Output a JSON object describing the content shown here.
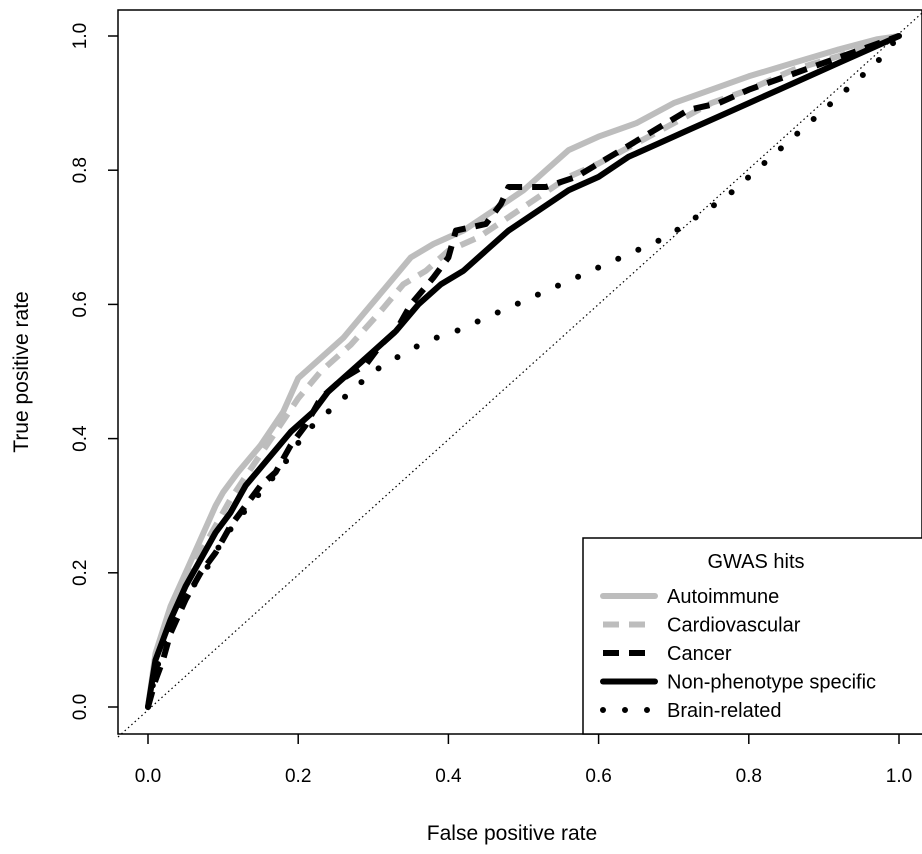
{
  "chart_data": {
    "type": "line",
    "title": "",
    "xlabel": "False positive rate",
    "ylabel": "True positive rate",
    "xlim": [
      -0.04,
      1.03
    ],
    "ylim": [
      -0.04,
      1.04
    ],
    "x_ticks": [
      "0.0",
      "0.2",
      "0.4",
      "0.6",
      "0.8",
      "1.0"
    ],
    "y_ticks": [
      "0.0",
      "0.2",
      "0.4",
      "0.6",
      "0.8",
      "1.0"
    ],
    "grid": false,
    "legend": {
      "title": "GWAS hits",
      "placement": "bottom-right"
    },
    "reference_line": {
      "style": "dotted",
      "color": "#000000",
      "from": [
        0,
        0
      ],
      "to": [
        1,
        1
      ]
    },
    "series": [
      {
        "name": "Autoimmune",
        "color": "#bdbdbd",
        "style": "solid",
        "points": [
          [
            0,
            0
          ],
          [
            0.01,
            0.08
          ],
          [
            0.03,
            0.15
          ],
          [
            0.05,
            0.2
          ],
          [
            0.07,
            0.25
          ],
          [
            0.09,
            0.3
          ],
          [
            0.1,
            0.32
          ],
          [
            0.12,
            0.35
          ],
          [
            0.15,
            0.39
          ],
          [
            0.18,
            0.44
          ],
          [
            0.2,
            0.49
          ],
          [
            0.23,
            0.52
          ],
          [
            0.26,
            0.55
          ],
          [
            0.29,
            0.59
          ],
          [
            0.32,
            0.63
          ],
          [
            0.35,
            0.67
          ],
          [
            0.38,
            0.69
          ],
          [
            0.42,
            0.71
          ],
          [
            0.46,
            0.74
          ],
          [
            0.5,
            0.77
          ],
          [
            0.53,
            0.8
          ],
          [
            0.56,
            0.83
          ],
          [
            0.6,
            0.85
          ],
          [
            0.65,
            0.87
          ],
          [
            0.7,
            0.9
          ],
          [
            0.75,
            0.92
          ],
          [
            0.8,
            0.94
          ],
          [
            0.86,
            0.96
          ],
          [
            0.92,
            0.98
          ],
          [
            0.97,
            0.995
          ],
          [
            1,
            1
          ]
        ]
      },
      {
        "name": "Cardiovascular",
        "color": "#bdbdbd",
        "style": "dashed",
        "points": [
          [
            0,
            0
          ],
          [
            0.01,
            0.07
          ],
          [
            0.03,
            0.13
          ],
          [
            0.05,
            0.18
          ],
          [
            0.07,
            0.23
          ],
          [
            0.09,
            0.27
          ],
          [
            0.11,
            0.31
          ],
          [
            0.14,
            0.36
          ],
          [
            0.17,
            0.41
          ],
          [
            0.2,
            0.46
          ],
          [
            0.23,
            0.5
          ],
          [
            0.27,
            0.54
          ],
          [
            0.31,
            0.59
          ],
          [
            0.34,
            0.63
          ],
          [
            0.37,
            0.65
          ],
          [
            0.4,
            0.68
          ],
          [
            0.44,
            0.7
          ],
          [
            0.48,
            0.73
          ],
          [
            0.52,
            0.76
          ],
          [
            0.56,
            0.79
          ],
          [
            0.6,
            0.81
          ],
          [
            0.65,
            0.84
          ],
          [
            0.7,
            0.87
          ],
          [
            0.75,
            0.9
          ],
          [
            0.8,
            0.92
          ],
          [
            0.86,
            0.95
          ],
          [
            0.92,
            0.97
          ],
          [
            0.97,
            0.99
          ],
          [
            1,
            1
          ]
        ]
      },
      {
        "name": "Cancer",
        "color": "#000000",
        "style": "dashed",
        "points": [
          [
            0,
            0
          ],
          [
            0.01,
            0.04
          ],
          [
            0.02,
            0.07
          ],
          [
            0.03,
            0.11
          ],
          [
            0.05,
            0.16
          ],
          [
            0.07,
            0.2
          ],
          [
            0.09,
            0.23
          ],
          [
            0.11,
            0.27
          ],
          [
            0.13,
            0.3
          ],
          [
            0.15,
            0.33
          ],
          [
            0.17,
            0.35
          ],
          [
            0.19,
            0.39
          ],
          [
            0.21,
            0.42
          ],
          [
            0.23,
            0.46
          ],
          [
            0.26,
            0.49
          ],
          [
            0.29,
            0.51
          ],
          [
            0.31,
            0.54
          ],
          [
            0.33,
            0.56
          ],
          [
            0.35,
            0.6
          ],
          [
            0.38,
            0.64
          ],
          [
            0.4,
            0.67
          ],
          [
            0.41,
            0.71
          ],
          [
            0.45,
            0.72
          ],
          [
            0.47,
            0.75
          ],
          [
            0.48,
            0.775
          ],
          [
            0.53,
            0.775
          ],
          [
            0.57,
            0.79
          ],
          [
            0.6,
            0.81
          ],
          [
            0.63,
            0.83
          ],
          [
            0.66,
            0.85
          ],
          [
            0.69,
            0.87
          ],
          [
            0.72,
            0.89
          ],
          [
            0.76,
            0.9
          ],
          [
            0.8,
            0.92
          ],
          [
            0.85,
            0.94
          ],
          [
            0.9,
            0.96
          ],
          [
            0.95,
            0.98
          ],
          [
            1,
            1
          ]
        ]
      },
      {
        "name": "Non-phenotype specific",
        "color": "#000000",
        "style": "solid",
        "points": [
          [
            0,
            0
          ],
          [
            0.01,
            0.07
          ],
          [
            0.03,
            0.13
          ],
          [
            0.05,
            0.18
          ],
          [
            0.07,
            0.22
          ],
          [
            0.09,
            0.26
          ],
          [
            0.11,
            0.29
          ],
          [
            0.13,
            0.33
          ],
          [
            0.16,
            0.37
          ],
          [
            0.19,
            0.41
          ],
          [
            0.22,
            0.44
          ],
          [
            0.24,
            0.47
          ],
          [
            0.27,
            0.5
          ],
          [
            0.3,
            0.53
          ],
          [
            0.33,
            0.56
          ],
          [
            0.36,
            0.6
          ],
          [
            0.39,
            0.63
          ],
          [
            0.42,
            0.65
          ],
          [
            0.45,
            0.68
          ],
          [
            0.48,
            0.71
          ],
          [
            0.52,
            0.74
          ],
          [
            0.56,
            0.77
          ],
          [
            0.6,
            0.79
          ],
          [
            0.64,
            0.82
          ],
          [
            0.68,
            0.84
          ],
          [
            0.72,
            0.86
          ],
          [
            0.76,
            0.88
          ],
          [
            0.8,
            0.9
          ],
          [
            0.84,
            0.92
          ],
          [
            0.88,
            0.94
          ],
          [
            0.92,
            0.96
          ],
          [
            0.96,
            0.98
          ],
          [
            1,
            1
          ]
        ]
      },
      {
        "name": "Brain-related",
        "color": "#000000",
        "style": "dotted",
        "points": [
          [
            0,
            0
          ],
          [
            0.01,
            0.05
          ],
          [
            0.02,
            0.09
          ],
          [
            0.04,
            0.14
          ],
          [
            0.06,
            0.18
          ],
          [
            0.08,
            0.21
          ],
          [
            0.1,
            0.25
          ],
          [
            0.12,
            0.28
          ],
          [
            0.15,
            0.32
          ],
          [
            0.18,
            0.36
          ],
          [
            0.21,
            0.41
          ],
          [
            0.24,
            0.44
          ],
          [
            0.27,
            0.47
          ],
          [
            0.3,
            0.5
          ],
          [
            0.33,
            0.52
          ],
          [
            0.37,
            0.545
          ],
          [
            0.41,
            0.56
          ],
          [
            0.45,
            0.58
          ],
          [
            0.49,
            0.6
          ],
          [
            0.53,
            0.62
          ],
          [
            0.57,
            0.64
          ],
          [
            0.61,
            0.66
          ],
          [
            0.65,
            0.68
          ],
          [
            0.69,
            0.7
          ],
          [
            0.73,
            0.73
          ],
          [
            0.77,
            0.76
          ],
          [
            0.81,
            0.8
          ],
          [
            0.85,
            0.84
          ],
          [
            0.89,
            0.88
          ],
          [
            0.93,
            0.92
          ],
          [
            0.97,
            0.96
          ],
          [
            1,
            1
          ]
        ]
      }
    ]
  }
}
